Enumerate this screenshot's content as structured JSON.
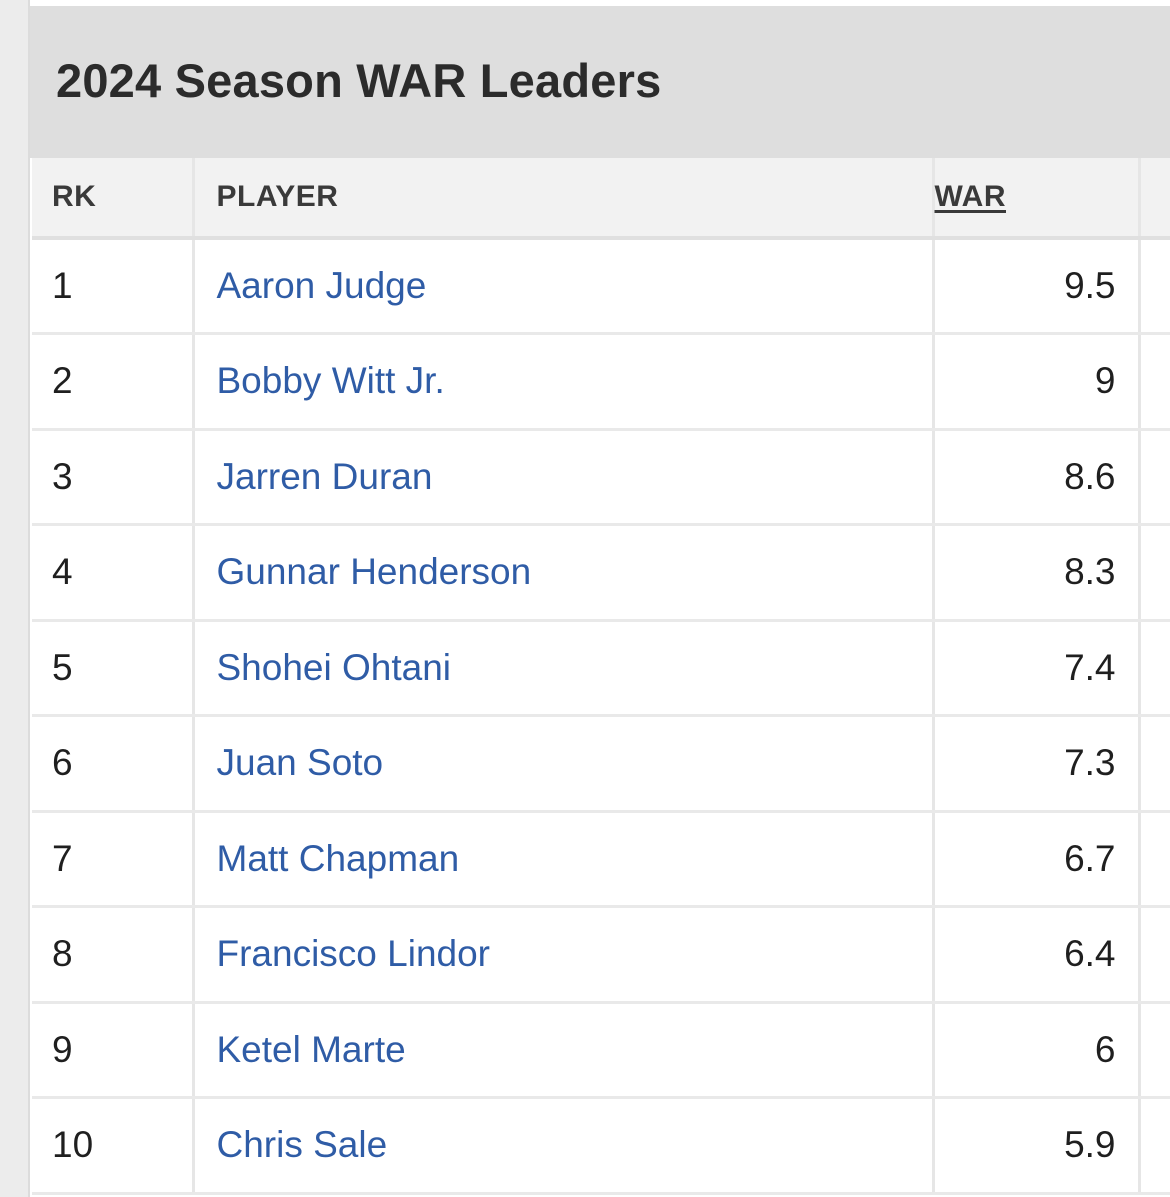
{
  "title": "2024 Season WAR Leaders",
  "columns": {
    "rank": "RK",
    "player": "PLAYER",
    "war": "WAR"
  },
  "rows": [
    {
      "rank": "1",
      "player": "Aaron Judge",
      "war": "9.5"
    },
    {
      "rank": "2",
      "player": "Bobby Witt Jr.",
      "war": "9"
    },
    {
      "rank": "3",
      "player": "Jarren Duran",
      "war": "8.6"
    },
    {
      "rank": "4",
      "player": "Gunnar Henderson",
      "war": "8.3"
    },
    {
      "rank": "5",
      "player": "Shohei Ohtani",
      "war": "7.4"
    },
    {
      "rank": "6",
      "player": "Juan Soto",
      "war": "7.3"
    },
    {
      "rank": "7",
      "player": "Matt Chapman",
      "war": "6.7"
    },
    {
      "rank": "8",
      "player": "Francisco Lindor",
      "war": "6.4"
    },
    {
      "rank": "9",
      "player": "Ketel Marte",
      "war": "6"
    },
    {
      "rank": "10",
      "player": "Chris Sale",
      "war": "5.9"
    }
  ],
  "colors": {
    "header_bg": "#dedede",
    "link": "#2f5ca6",
    "text": "#1f1f1f"
  }
}
